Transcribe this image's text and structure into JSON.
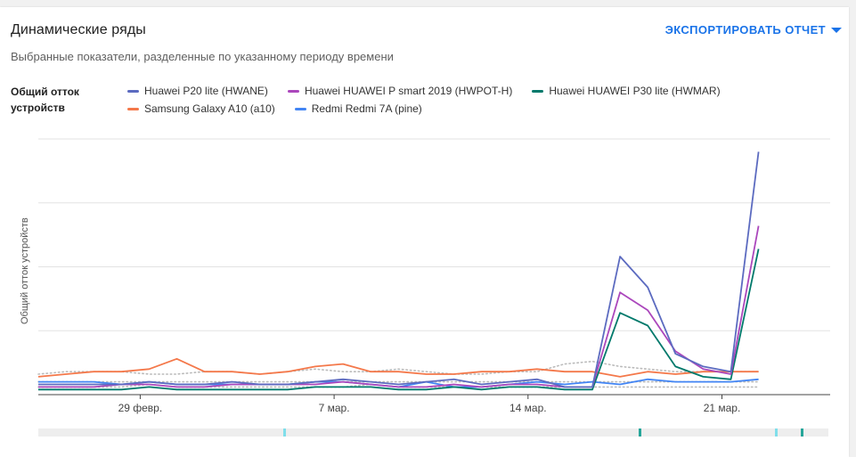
{
  "header": {
    "title": "Динамические ряды",
    "subtitle": "Выбранные показатели, разделенные по указанному периоду времени",
    "export_label": "ЭКСПОРТИРОВАТЬ ОТЧЕТ"
  },
  "metric_label": "Общий отток устройств",
  "chart_data": {
    "type": "line",
    "ylabel": "Общий отток устройств",
    "x_labels": [
      "29 февр.",
      "7 мар.",
      "14 мар.",
      "21 мар."
    ],
    "series": [
      {
        "name": "Huawei P20 lite (HWANE)",
        "color": "#5c6bc0",
        "values": [
          4,
          4,
          4,
          4,
          5,
          4,
          4,
          5,
          4,
          4,
          5,
          6,
          5,
          4,
          5,
          6,
          4,
          5,
          6,
          3,
          3,
          54,
          42,
          16,
          11,
          9,
          95
        ]
      },
      {
        "name": "Huawei HUAWEI P smart 2019 (HWPOT-H)",
        "color": "#ab47bc",
        "values": [
          3,
          3,
          3,
          4,
          4,
          3,
          3,
          4,
          4,
          4,
          4,
          5,
          4,
          3,
          3,
          4,
          3,
          4,
          4,
          3,
          3,
          40,
          33,
          17,
          10,
          8,
          66
        ]
      },
      {
        "name": "Huawei HUAWEI P30 lite (HWMAR)",
        "color": "#00796b",
        "values": [
          2,
          2,
          2,
          2,
          3,
          2,
          2,
          2,
          2,
          2,
          3,
          3,
          3,
          2,
          2,
          3,
          2,
          3,
          3,
          2,
          2,
          32,
          27,
          11,
          7,
          6,
          57
        ]
      },
      {
        "name": "Samsung Galaxy A10 (a10)",
        "color": "#f4784a",
        "values": [
          7,
          8,
          9,
          9,
          10,
          14,
          9,
          9,
          8,
          9,
          11,
          12,
          9,
          9,
          8,
          8,
          9,
          9,
          10,
          9,
          9,
          7,
          9,
          8,
          9,
          9,
          9
        ]
      },
      {
        "name": "Redmi Redmi 7A (pine)",
        "color": "#4285f4",
        "values": [
          5,
          5,
          5,
          4,
          5,
          4,
          4,
          4,
          4,
          4,
          5,
          5,
          4,
          3,
          5,
          3,
          3,
          4,
          5,
          4,
          5,
          4,
          6,
          5,
          5,
          5,
          6
        ]
      }
    ],
    "dotted_series": [
      {
        "color": "#bbbbbb",
        "values": [
          8,
          9,
          9,
          9,
          8,
          8,
          9,
          9,
          8,
          9,
          10,
          9,
          9,
          10,
          9,
          8,
          8,
          9,
          9,
          12,
          13,
          11,
          10,
          9,
          9,
          9,
          9
        ]
      },
      {
        "color": "#bbbbbb",
        "values": [
          3,
          3,
          3,
          3,
          4,
          3,
          3,
          3,
          3,
          3,
          3,
          3,
          4,
          3,
          3,
          3,
          3,
          3,
          3,
          3,
          3,
          3,
          3,
          3,
          3,
          3,
          3
        ]
      },
      {
        "color": "#bbbbbb",
        "values": [
          5,
          5,
          5,
          5,
          5,
          5,
          5,
          5,
          5,
          5,
          5,
          5,
          5,
          5,
          5,
          5,
          5,
          5,
          5,
          5,
          5,
          5,
          5,
          5,
          5,
          5,
          5
        ]
      }
    ],
    "ylim": [
      0,
      100
    ],
    "grid": true
  },
  "scrollbar": {
    "markers": [
      {
        "position": 0.31,
        "color": "#80deea"
      },
      {
        "position": 0.76,
        "color": "#26a69a"
      },
      {
        "position": 0.932,
        "color": "#80deea"
      },
      {
        "position": 0.965,
        "color": "#26a69a"
      }
    ]
  }
}
